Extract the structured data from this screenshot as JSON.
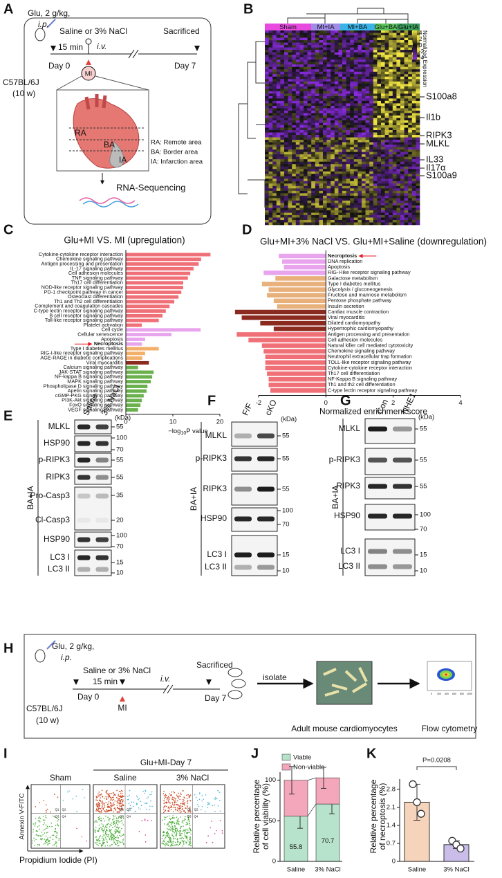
{
  "panel_labels": [
    "A",
    "B",
    "C",
    "D",
    "E",
    "F",
    "G",
    "H",
    "I",
    "J",
    "K"
  ],
  "panel_a": {
    "dose": "Glu, 2 g/kg,",
    "route1": "i.p.",
    "treatment": "Saline or 3% NaCl",
    "route2": "i.v.",
    "sacrificed": "Sacrificed",
    "interval": "15 min",
    "day0": "Day 0",
    "day7": "Day 7",
    "mouse": "C57BL/6J",
    "age": "(10 w)",
    "mi": "MI",
    "ra": "RA",
    "ba": "BA",
    "ia": "IA",
    "legend": [
      "RA: Remote area",
      "BA: Border area",
      "IA: Infarction area"
    ],
    "output": "RNA-Sequencing"
  },
  "panel_b": {
    "groups": [
      "Sham",
      "MI+IA",
      "MI+BA",
      "Glu+BA",
      "Glu+IA"
    ],
    "group_colors": [
      "#e84ae0",
      "#a08ce6",
      "#3ab4e8",
      "#5cc45c",
      "#3a9a5a"
    ],
    "colorbar_title": "Normalized Expression",
    "colorbar_ticks": [
      4,
      2,
      0,
      -2,
      -4
    ],
    "genes": [
      "S100a8",
      "Il1b",
      "RIPK3",
      "MLKL",
      "IL33",
      "Il17α",
      "S100a9"
    ]
  },
  "panel_e": {
    "conditions": [
      "Saline",
      "3% NaCl"
    ],
    "unit": "(kDa)",
    "sample": "BA+IA",
    "rows": [
      "MLKL",
      "HSP90",
      "p-RIPK3",
      "RIPK3",
      "Pro-Casp3",
      "Cl-Casp3",
      "HSP90",
      "LC3 I",
      "LC3 II"
    ],
    "markers": [
      55,
      100,
      70,
      55,
      55,
      35,
      20,
      100,
      70,
      15,
      10
    ]
  },
  "panel_f": {
    "conditions": [
      "F/F",
      "cKO"
    ],
    "unit": "(kDa)",
    "sample": "BA+IA",
    "rows": [
      "MLKL",
      "p-RIPK3",
      "RIPK3",
      "HSP90",
      "LC3 I",
      "LC3 II"
    ],
    "markers": [
      55,
      55,
      55,
      100,
      70,
      15,
      10
    ]
  },
  "panel_g": {
    "conditions": [
      "Con",
      "NHE1"
    ],
    "unit": "(kDa)",
    "sample": "BA+IA",
    "rows": [
      "MLKL",
      "p-RIPK3",
      "RIPK3",
      "HSP90",
      "LC3 I",
      "LC3 II"
    ],
    "markers": [
      55,
      55,
      55,
      100,
      70,
      15,
      10
    ]
  },
  "panel_h": {
    "dose": "Glu, 2 g/kg,",
    "route1": "i.p.",
    "treatment": "Saline or 3% NaCl",
    "route2": "i.v.",
    "sacrificed": "Sacrificed",
    "interval": "15 min",
    "day0": "Day 0",
    "day7": "Day 7",
    "mouse": "C57BL/6J",
    "age": "(10 w)",
    "mi": "MI",
    "isolate": "isolate",
    "cells": "Adult mouse cardiomyocytes",
    "method": "Flow cytometry",
    "inset_ticks": [
      0,
      200,
      400,
      600,
      800,
      1000
    ]
  },
  "panel_i": {
    "group": "Glu+MI-Day 7",
    "plots": [
      "Sham",
      "Saline",
      "3% NaCl"
    ],
    "ylabel": "Annexin V-FITC",
    "xlabel": "Propidium Iodide (PI)",
    "quadrants": [
      "Q1",
      "Q2",
      "Q3",
      "Q4"
    ]
  },
  "chart_data": [
    {
      "type": "hbar",
      "title": "Glu+MI VS. MI (upregulation)",
      "categories": [
        "Cytokine-cytokine receptor interaction",
        "Chemokine signaling pathway",
        "Antigen processing and presentation",
        "IL-17 signaling pathway",
        "Cell adhesion molecules",
        "TNF signaling pathway",
        "Th17 cell differentiation",
        "NOD-like receptor signaling pathway",
        "PD-1 checkpoint pathway in cancer",
        "Osteoclast differentiation",
        "Th1 and Th2 cell differentiation",
        "Complement and coagulation cascades",
        "C-type lectin receptor signaling pathway",
        "B cell receptor signaling pathway",
        "Toll-like receptor signaling pathway",
        "Platelet activation",
        "Cell cycle",
        "Cellular senescence",
        "Apoptosis",
        "Necroptosis",
        "Type I diabetes mellitus",
        "RIG-I-like receptor signaling pathway",
        "AGE-RAGE in diabetic complications",
        "Viral myocarditis",
        "Calcium signaling pathway",
        "JAK-STAT signaling pathway",
        "NF-kappa B signaling pathway",
        "MAPK signaling pathway",
        "Phospholipase D signaling pathway",
        "Apelin signaling pathway",
        "cGMP-PKG signaling pathway",
        "PI3K-Akt signaling pathway",
        "FoxO signaling pathway",
        "VEGF signaling pathway"
      ],
      "values": [
        18,
        16,
        15.5,
        14.4,
        13.7,
        13.2,
        12.2,
        12.2,
        11.8,
        11.2,
        10.3,
        9.3,
        8.5,
        7.8,
        7,
        3.4,
        15.9,
        9.7,
        4.1,
        3.4,
        7,
        4.1,
        3.5,
        4.9,
        2.6,
        5.9,
        5.6,
        5.3,
        4.6,
        4.4,
        3.8,
        3.4,
        3.1,
        2.6
      ],
      "colors": [
        "#f07078",
        "#f07078",
        "#f07078",
        "#f07078",
        "#f07078",
        "#f07078",
        "#f07078",
        "#f07078",
        "#f07078",
        "#f07078",
        "#f07078",
        "#f07078",
        "#f07078",
        "#f07078",
        "#f07078",
        "#f07078",
        "#e9a4ee",
        "#e9a4ee",
        "#e9a4ee",
        "#e9a4ee",
        "#f2b06a",
        "#f2b06a",
        "#f2b06a",
        "#8b2a1e",
        "#6ab04c",
        "#6ab04c",
        "#6ab04c",
        "#6ab04c",
        "#6ab04c",
        "#6ab04c",
        "#6ab04c",
        "#6ab04c",
        "#6ab04c",
        "#6ab04c"
      ],
      "label_colors": [
        "#222",
        "#222",
        "#222",
        "#222",
        "#222",
        "#222",
        "#222",
        "#222",
        "#222",
        "#222",
        "#222",
        "#222",
        "#222",
        "#222",
        "#222",
        "#222",
        "#222",
        "#222",
        "#222",
        "#e8141c",
        "#222",
        "#222",
        "#222",
        "#222",
        "#222",
        "#222",
        "#222",
        "#222",
        "#222",
        "#222",
        "#222",
        "#222",
        "#222",
        "#222"
      ],
      "xlim": [
        0,
        20
      ],
      "xticks": [
        0,
        10,
        20
      ],
      "xlabel": [
        "−log",
        "10",
        "P value"
      ]
    },
    {
      "type": "hbar",
      "title": "Glu+MI+3% NaCl VS. Glu+MI+Saline (downregulation)",
      "categories": [
        "Necroptosis",
        "DNA replication",
        "Apoptosis",
        "RIG-I-like receptor signaling pathway",
        "Galactose metabolism",
        "Type I diabetes mellitus",
        "Glycolysis / gluconeogenesis",
        "Fructose and mannose metabolism",
        "Pentose phosphate pathway",
        "Insulin secretion",
        "Cardiac muscle contraction",
        "Viral myocarditis",
        "Dilated cardiomyopathy",
        "Hypertrophic cardiomyopathy",
        "Antigen processing and presentation",
        "Cell adhesion molecules",
        "Natural killer cell mediated cytotoxicity",
        "Chemokine signaling pathway",
        "Neutrophil extracellular trap formation",
        "TOLL-like receptor signaling pathway",
        "Cytokine-cytokine receptor interaction",
        "Th17 cell differentiation",
        "NF-Kappa B signaling pathway",
        "Th1 and th2 cell differentiation",
        "C-type lectin receptor signaling pathway"
      ],
      "values": [
        -1.4,
        -1.3,
        -1.25,
        -1.85,
        -1.5,
        -1.9,
        -1.7,
        -1.75,
        -1.55,
        -1.45,
        -2.7,
        -2.5,
        -1.95,
        -1.55,
        -2.65,
        -2.3,
        -1.9,
        -1.85,
        -1.8,
        -1.8,
        -1.8,
        -1.75,
        -1.7,
        -1.7,
        -1.65
      ],
      "colors": [
        "#e9a4ee",
        "#e9a4ee",
        "#e9a4ee",
        "#e9a4ee",
        "#e8b07a",
        "#e8b07a",
        "#e8b07a",
        "#e8b07a",
        "#e8b07a",
        "#e8b07a",
        "#8b2a1e",
        "#8b2a1e",
        "#8b2a1e",
        "#8b2a1e",
        "#f07078",
        "#f07078",
        "#f07078",
        "#f07078",
        "#f07078",
        "#f07078",
        "#f07078",
        "#f07078",
        "#f07078",
        "#f07078",
        "#f07078"
      ],
      "label_colors": [
        "#e8141c",
        "#222",
        "#222",
        "#222",
        "#222",
        "#222",
        "#222",
        "#222",
        "#222",
        "#222",
        "#222",
        "#222",
        "#222",
        "#222",
        "#222",
        "#222",
        "#222",
        "#222",
        "#222",
        "#222",
        "#222",
        "#222",
        "#222",
        "#222",
        "#222"
      ],
      "xlim": [
        -2.8,
        4
      ],
      "xticks": [
        -2,
        0,
        2,
        4
      ],
      "xlabel": "Normalized enrichment score"
    },
    {
      "type": "stacked_bar",
      "categories": [
        "Saline",
        "3% NaCl"
      ],
      "series": [
        {
          "name": "Viable",
          "color": "#b7e2cb",
          "values": [
            55.8,
            70.7
          ],
          "errors": [
            15,
            12
          ],
          "data_labels": true
        },
        {
          "name": "Non-viable",
          "color": "#f4a7ba",
          "values": [
            44.2,
            32.3
          ],
          "errors": [
            17,
            13
          ]
        }
      ],
      "ylim": [
        0,
        110
      ],
      "yticks": [
        0,
        50,
        100
      ],
      "ylabel": [
        "Relative percentage",
        "of cell viability (%)"
      ]
    },
    {
      "type": "bar_points",
      "categories": [
        "Saline",
        "3% NaCl"
      ],
      "values": [
        2.3,
        0.65
      ],
      "errors": [
        0.7,
        0.15
      ],
      "points": [
        [
          3.0,
          2.3,
          1.85
        ],
        [
          0.8,
          0.65,
          0.5
        ]
      ],
      "colors": [
        "#f6d4bb",
        "#cbbdea"
      ],
      "ylim": [
        0,
        3.2
      ],
      "yticks": [
        0,
        0.7,
        1.4,
        2.1,
        2.8
      ],
      "ylabel": [
        "Relative percentage",
        "of necroptosis (%)"
      ],
      "annotation": "P=0.0208"
    }
  ]
}
